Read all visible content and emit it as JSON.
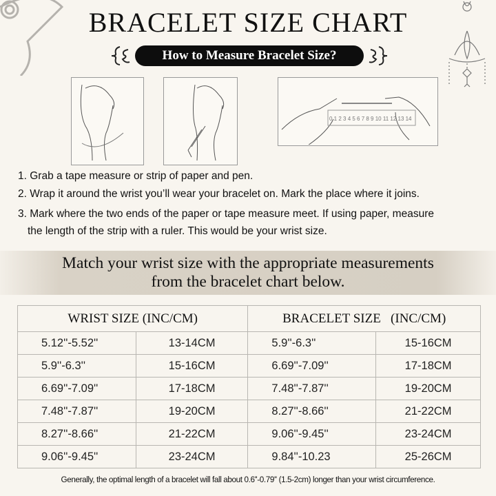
{
  "title": "BRACELET SIZE CHART",
  "subtitle": "How to Measure Bracelet Size?",
  "ruler_numbers": "0 1 2 3 4 5 6 7 8 9 10 11 12 13 14",
  "steps": [
    "1. Grab a tape measure or strip of paper and pen.",
    "2. Wrap it around the wrist you’ll wear your bracelet on. Mark the place where it joins.",
    "3. Mark where the two ends of the paper or tape measure meet. If using paper, measure",
    "the length of the strip with a ruler. This would be your wrist size."
  ],
  "banner": [
    "Match your wrist size with the appropriate measurements",
    "from the bracelet chart below."
  ],
  "table": {
    "headers": [
      "WRIST SIZE (INC/CM)",
      "BRACELET SIZE   (INC/CM)"
    ],
    "rows": [
      [
        "5.12''-5.52''",
        "13-14CM",
        "5.9''-6.3''",
        "15-16CM"
      ],
      [
        "5.9''-6.3''",
        "15-16CM",
        "6.69''-7.09''",
        "17-18CM"
      ],
      [
        "6.69''-7.09''",
        "17-18CM",
        "7.48''-7.87''",
        "19-20CM"
      ],
      [
        "7.48''-7.87''",
        "19-20CM",
        "8.27''-8.66''",
        "21-22CM"
      ],
      [
        "8.27''-8.66''",
        "21-22CM",
        "9.06''-9.45''",
        "23-24CM"
      ],
      [
        "9.06''-9.45''",
        "23-24CM",
        "9.84''-10.23",
        "25-26CM"
      ]
    ]
  },
  "note": "Generally, the optimal length of a bracelet will fall about 0.6''-0.79'' (1.5-2cm) longer than your wrist circumference."
}
